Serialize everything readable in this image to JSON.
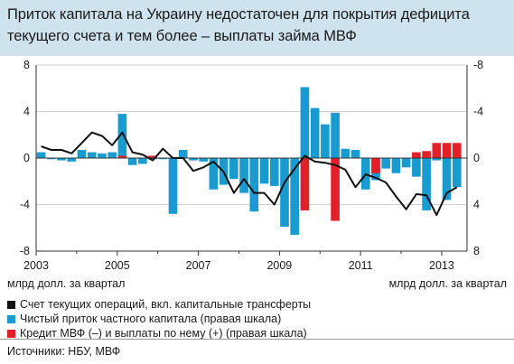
{
  "title": {
    "line1": "Приток капитала на Украину недостаточен для покрытия дефицита",
    "line2": "текущего счета и тем более – выплаты займа МВФ"
  },
  "chart_data": {
    "type": "bar+line",
    "x_start": 2003.0,
    "quarters_count": 42,
    "x_ticks": [
      2003,
      2005,
      2007,
      2009,
      2011,
      2013
    ],
    "y_left": {
      "ticks": [
        8,
        4,
        0,
        -4,
        -8
      ],
      "labels": [
        "8",
        "4",
        "0",
        "-4",
        "-8"
      ],
      "range": [
        -8,
        8
      ],
      "unit_label": "млрд долл. за квартал"
    },
    "y_right": {
      "ticks": [
        -8,
        -4,
        0,
        4,
        8
      ],
      "labels": [
        "-8",
        "-4",
        "0",
        "4",
        "8"
      ],
      "range_top_bottom": [
        -8,
        8
      ],
      "unit_label": "млрд долл. за квартал"
    },
    "colors": {
      "current_account": "#111111",
      "private_capital": "#1a9bcf",
      "imf": "#e32027"
    },
    "series": [
      {
        "key": "current_account",
        "name": "Счет текущих операций, вкл. капитальные трансферты",
        "axis": "left",
        "render": "line",
        "points": [
          [
            2003.125,
            1.0
          ],
          [
            2003.375,
            0.7
          ],
          [
            2003.625,
            0.7
          ],
          [
            2003.875,
            0.4
          ],
          [
            2004.125,
            1.3
          ],
          [
            2004.375,
            2.2
          ],
          [
            2004.625,
            1.9
          ],
          [
            2004.875,
            1.1
          ],
          [
            2005.125,
            2.2
          ],
          [
            2005.375,
            0.5
          ],
          [
            2005.625,
            0.3
          ],
          [
            2005.875,
            -0.2
          ],
          [
            2006.125,
            0.8
          ],
          [
            2006.375,
            0.0
          ],
          [
            2006.625,
            0.0
          ],
          [
            2006.875,
            -1.1
          ],
          [
            2007.125,
            -0.8
          ],
          [
            2007.375,
            -0.3
          ],
          [
            2007.625,
            -1.2
          ],
          [
            2007.875,
            -3.0
          ],
          [
            2008.125,
            -1.8
          ],
          [
            2008.375,
            -3.0
          ],
          [
            2008.625,
            -3.0
          ],
          [
            2008.875,
            -4.0
          ],
          [
            2009.125,
            -2.1
          ],
          [
            2009.375,
            -0.9
          ],
          [
            2009.625,
            0.2
          ],
          [
            2009.875,
            -0.3
          ],
          [
            2010.125,
            -0.4
          ],
          [
            2010.375,
            -0.6
          ],
          [
            2010.625,
            -1.0
          ],
          [
            2010.875,
            -2.5
          ],
          [
            2011.125,
            -1.4
          ],
          [
            2011.375,
            -1.7
          ],
          [
            2011.625,
            -2.1
          ],
          [
            2011.875,
            -3.3
          ],
          [
            2012.125,
            -4.4
          ],
          [
            2012.375,
            -3.1
          ],
          [
            2012.625,
            -3.2
          ],
          [
            2012.875,
            -4.9
          ],
          [
            2013.125,
            -3.0
          ],
          [
            2013.375,
            -2.5
          ]
        ]
      },
      {
        "key": "private_capital",
        "name": "Чистый приток частного капитала (правая шкала)",
        "axis": "right",
        "render": "bar",
        "values": [
          -0.5,
          0.1,
          0.2,
          0.3,
          -0.7,
          -0.5,
          -0.4,
          -0.5,
          -3.8,
          0.6,
          0.5,
          0.1,
          0.1,
          4.8,
          -0.7,
          0.2,
          0.3,
          2.7,
          2.3,
          1.8,
          3.0,
          4.6,
          2.2,
          2.4,
          5.9,
          6.6,
          -6.1,
          -4.3,
          -2.9,
          -3.9,
          -0.8,
          -0.7,
          2.7,
          1.9,
          0.9,
          1.3,
          0.8,
          1.6,
          4.5,
          0.2,
          3.6,
          2.5
        ]
      },
      {
        "key": "imf",
        "name": "Кредит МВФ (–) и выплаты по нему (+) (правая шкала)",
        "axis": "right",
        "render": "bar",
        "values": [
          0,
          0,
          0,
          0,
          0,
          0,
          0,
          0,
          -0.2,
          0,
          0,
          -0.2,
          0,
          0,
          0,
          0,
          0,
          0,
          0,
          0,
          0,
          0,
          0,
          0,
          0,
          0,
          4.5,
          0,
          0,
          5.4,
          0,
          0,
          0,
          1.3,
          0,
          0,
          0,
          -0.5,
          -0.6,
          -1.3,
          -1.3,
          -1.3
        ]
      }
    ]
  },
  "legend": {
    "items": [
      {
        "label": "Счет текущих операций, вкл. капитальные трансферты",
        "color": "#111111"
      },
      {
        "label": "Чистый приток частного капитала (правая шкала)",
        "color": "#1a9bcf"
      },
      {
        "label": "Кредит МВФ (–) и выплаты по нему (+) (правая шкала)",
        "color": "#e32027"
      }
    ]
  },
  "source": "Источники: НБУ, МВФ"
}
